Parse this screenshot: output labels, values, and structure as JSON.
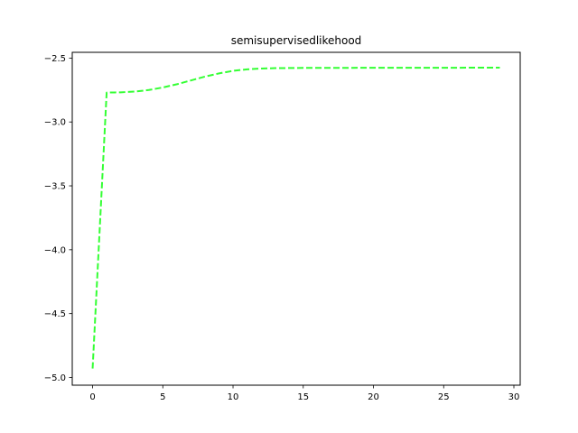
{
  "chart_data": {
    "type": "line",
    "title": "semisupervisedlikehood",
    "xlabel": "",
    "ylabel": "",
    "xlim": [
      -1.45,
      30.45
    ],
    "ylim": [
      -5.06,
      -2.455
    ],
    "xticks": [
      0,
      5,
      10,
      15,
      20,
      25,
      30
    ],
    "xtick_labels": [
      "0",
      "5",
      "10",
      "15",
      "20",
      "25",
      "30"
    ],
    "yticks": [
      -5.0,
      -4.5,
      -4.0,
      -3.5,
      -3.0,
      -2.5
    ],
    "ytick_labels": [
      "−5.0",
      "−4.5",
      "−4.0",
      "−3.5",
      "−3.0",
      "−2.5"
    ],
    "grid": false,
    "series": [
      {
        "color": "#33ff33",
        "linestyle": "dashed",
        "x": [
          0,
          1,
          2,
          3,
          4,
          5,
          6,
          7,
          8,
          9,
          10,
          11,
          12,
          13,
          14,
          15,
          16,
          17,
          18,
          19,
          20,
          21,
          22,
          23,
          24,
          25,
          26,
          27,
          28,
          29
        ],
        "values": [
          -4.93,
          -2.77,
          -2.768,
          -2.762,
          -2.75,
          -2.73,
          -2.705,
          -2.675,
          -2.645,
          -2.62,
          -2.6,
          -2.588,
          -2.582,
          -2.579,
          -2.578,
          -2.577,
          -2.577,
          -2.577,
          -2.577,
          -2.576,
          -2.576,
          -2.576,
          -2.576,
          -2.576,
          -2.576,
          -2.576,
          -2.576,
          -2.575,
          -2.575,
          -2.575
        ]
      }
    ]
  }
}
